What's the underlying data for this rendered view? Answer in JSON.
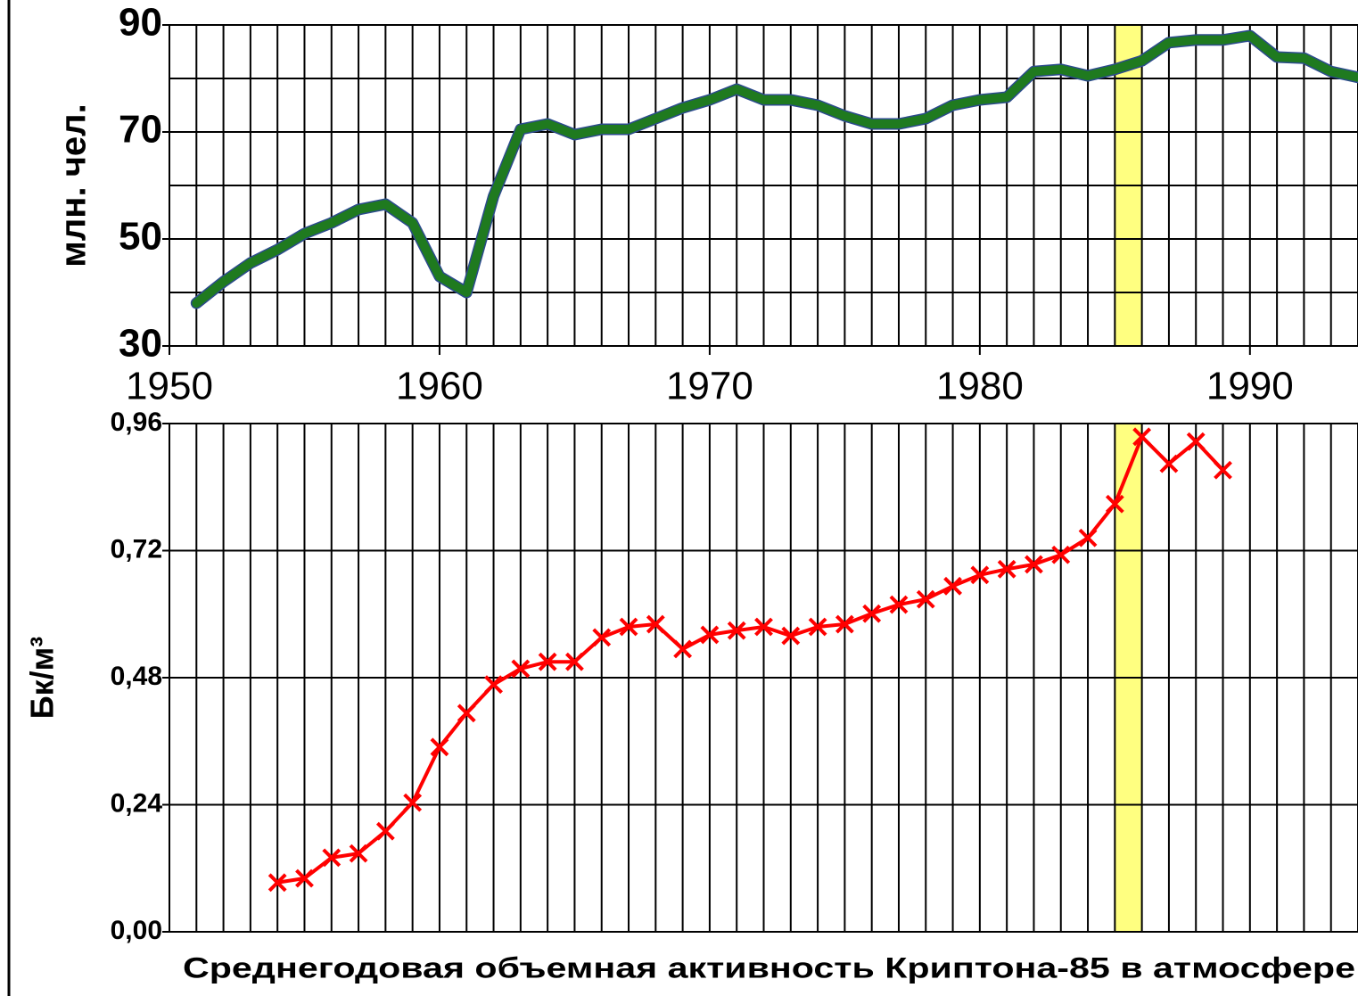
{
  "chart_data": [
    {
      "type": "line",
      "y_label": "млн. чел.",
      "x": [
        1951,
        1952,
        1953,
        1954,
        1955,
        1956,
        1957,
        1958,
        1959,
        1960,
        1961,
        1962,
        1963,
        1964,
        1965,
        1966,
        1967,
        1968,
        1969,
        1970,
        1971,
        1972,
        1973,
        1974,
        1975,
        1976,
        1977,
        1978,
        1979,
        1980,
        1981,
        1982,
        1983,
        1984,
        1985,
        1986,
        1987,
        1988,
        1989,
        1990,
        1991,
        1992,
        1993,
        1994
      ],
      "series": [
        {
          "color": "#1f7a1f",
          "values": [
            38,
            42,
            45.5,
            48,
            51,
            53,
            55.5,
            56.5,
            53,
            43,
            40,
            58,
            70.5,
            71.5,
            69.5,
            70.5,
            70.5,
            72.5,
            74.5,
            76,
            78,
            76,
            76,
            75,
            73,
            71.5,
            71.5,
            72.5,
            75,
            76,
            76.5,
            81.3,
            81.7,
            80.5,
            81.7,
            83.3,
            86.7,
            87.2,
            87.2,
            88,
            84,
            83.8,
            81.3,
            80.2
          ]
        }
      ],
      "xlim": [
        1950,
        1994
      ],
      "xticks": [
        1950,
        1960,
        1970,
        1980,
        1990
      ],
      "ylim": [
        30,
        90
      ],
      "yticks": [
        30,
        50,
        70,
        90
      ],
      "xgrid_step": 1,
      "ygrid_step": 10,
      "highlight": [
        1985,
        1986
      ],
      "highlight_color": "#ffff80"
    },
    {
      "type": "line",
      "y_label": "Бк/м³",
      "marker": "x",
      "caption": "Среднегодовая объемная активность Криптона-85 в атмосфере",
      "x": [
        1954,
        1955,
        1956,
        1957,
        1958,
        1959,
        1960,
        1961,
        1962,
        1963,
        1964,
        1965,
        1966,
        1967,
        1968,
        1969,
        1970,
        1971,
        1972,
        1973,
        1974,
        1975,
        1976,
        1977,
        1978,
        1979,
        1980,
        1981,
        1982,
        1983,
        1984,
        1985,
        1986,
        1987,
        1988,
        1989
      ],
      "series": [
        {
          "color": "#ff0000",
          "values": [
            0.093,
            0.101,
            0.14,
            0.148,
            0.19,
            0.244,
            0.349,
            0.413,
            0.467,
            0.497,
            0.51,
            0.51,
            0.556,
            0.576,
            0.581,
            0.534,
            0.561,
            0.569,
            0.576,
            0.559,
            0.576,
            0.581,
            0.601,
            0.618,
            0.628,
            0.653,
            0.674,
            0.685,
            0.694,
            0.712,
            0.744,
            0.808,
            0.935,
            0.884,
            0.926,
            0.872
          ]
        }
      ],
      "xlim": [
        1950,
        1994
      ],
      "ylim": [
        0,
        0.96
      ],
      "yticks": [
        {
          "value": 0,
          "label": "0,00"
        },
        {
          "value": 0.24,
          "label": "0,24"
        },
        {
          "value": 0.48,
          "label": "0,48"
        },
        {
          "value": 0.72,
          "label": "0,72"
        },
        {
          "value": 0.96,
          "label": "0,96"
        }
      ],
      "xgrid_step": 1,
      "highlight": [
        1985,
        1986
      ],
      "highlight_color": "#ffff80"
    }
  ]
}
